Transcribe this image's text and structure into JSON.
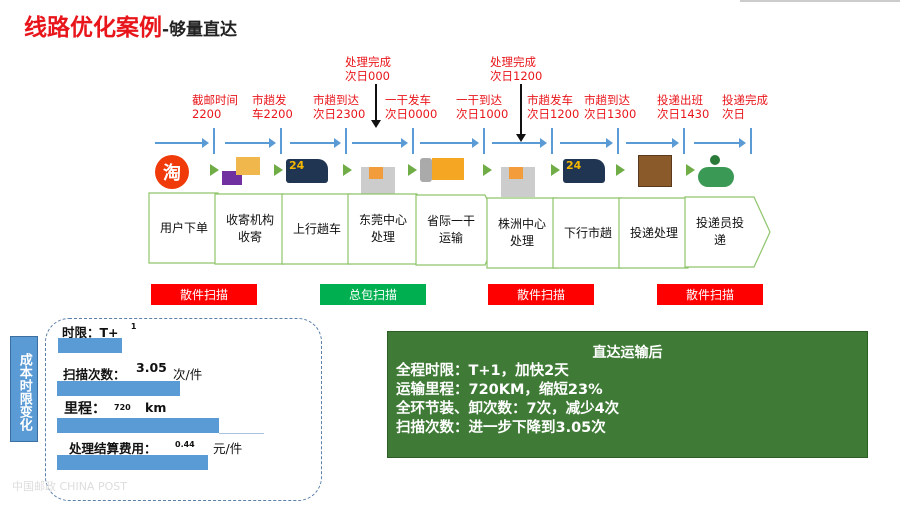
{
  "title": {
    "main": "线路优化案例",
    "sub": "-够量直达"
  },
  "timeline_labels": [
    {
      "l1": "截邮时间",
      "l2": "2200"
    },
    {
      "l1": "市趟发",
      "l2": "车2200"
    },
    {
      "l1": "市趟到达",
      "l2": "次日2300"
    },
    {
      "l1": "一干发车",
      "l2": "次日0000"
    },
    {
      "l1": "一干到达",
      "l2": "次日1000"
    },
    {
      "l1": "市趟发车",
      "l2": "次日1200"
    },
    {
      "l1": "市趟到达",
      "l2": "次日1300"
    },
    {
      "l1": "投递出班",
      "l2": "次日1430"
    },
    {
      "l1": "投递完成",
      "l2": "次日"
    }
  ],
  "milestones": [
    {
      "l1": "处理完成",
      "l2": "次日000"
    },
    {
      "l1": "处理完成",
      "l2": "次日1200"
    }
  ],
  "icons": [
    "taobao-icon",
    "parcel-cart-icon",
    "delivery-van-icon",
    "sorting-center-icon",
    "truck-icon",
    "sorting-center-icon",
    "delivery-van-icon",
    "parcel-shelf-icon",
    "courier-scooter-icon"
  ],
  "steps": [
    "用户下单",
    "收寄机构\n收寄",
    "上行趟车",
    "东莞中心\n处理",
    "省际一干\n运输",
    "株洲中心\n处理",
    "下行市趟",
    "投递处理",
    "投递员投\n递"
  ],
  "scans": [
    {
      "label": "散件扫描",
      "color": "#ff0000"
    },
    {
      "label": "总包扫描",
      "color": "#00b050"
    },
    {
      "label": "散件扫描",
      "color": "#ff0000"
    },
    {
      "label": "散件扫描",
      "color": "#ff0000"
    }
  ],
  "cost_panel": {
    "side_label": "成本时限变化",
    "time_limit": {
      "label": "时限：T+",
      "value": "1"
    },
    "scan_count": {
      "label": "扫描次数：",
      "value": "3.05",
      "unit": "次/件"
    },
    "mileage": {
      "label": "里程：",
      "value": "720",
      "unit": "km"
    },
    "fee": {
      "label": "处理结算费用：",
      "value": "0.44",
      "unit": "元/件"
    }
  },
  "result": {
    "heading": "直达运输后",
    "lines": [
      "全程时限：T+1，加快2天",
      "运输里程：720KM，缩短23%",
      "全环节装、卸次数：7次，减少4次",
      "扫描次数：进一步下降到3.05次"
    ]
  },
  "logo": "中国邮政 CHINA POST",
  "colors": {
    "accent": "#e8161b",
    "timeline": "#5b9bd5",
    "step_border": "#70ad47",
    "result_bg": "#3f7b36"
  }
}
